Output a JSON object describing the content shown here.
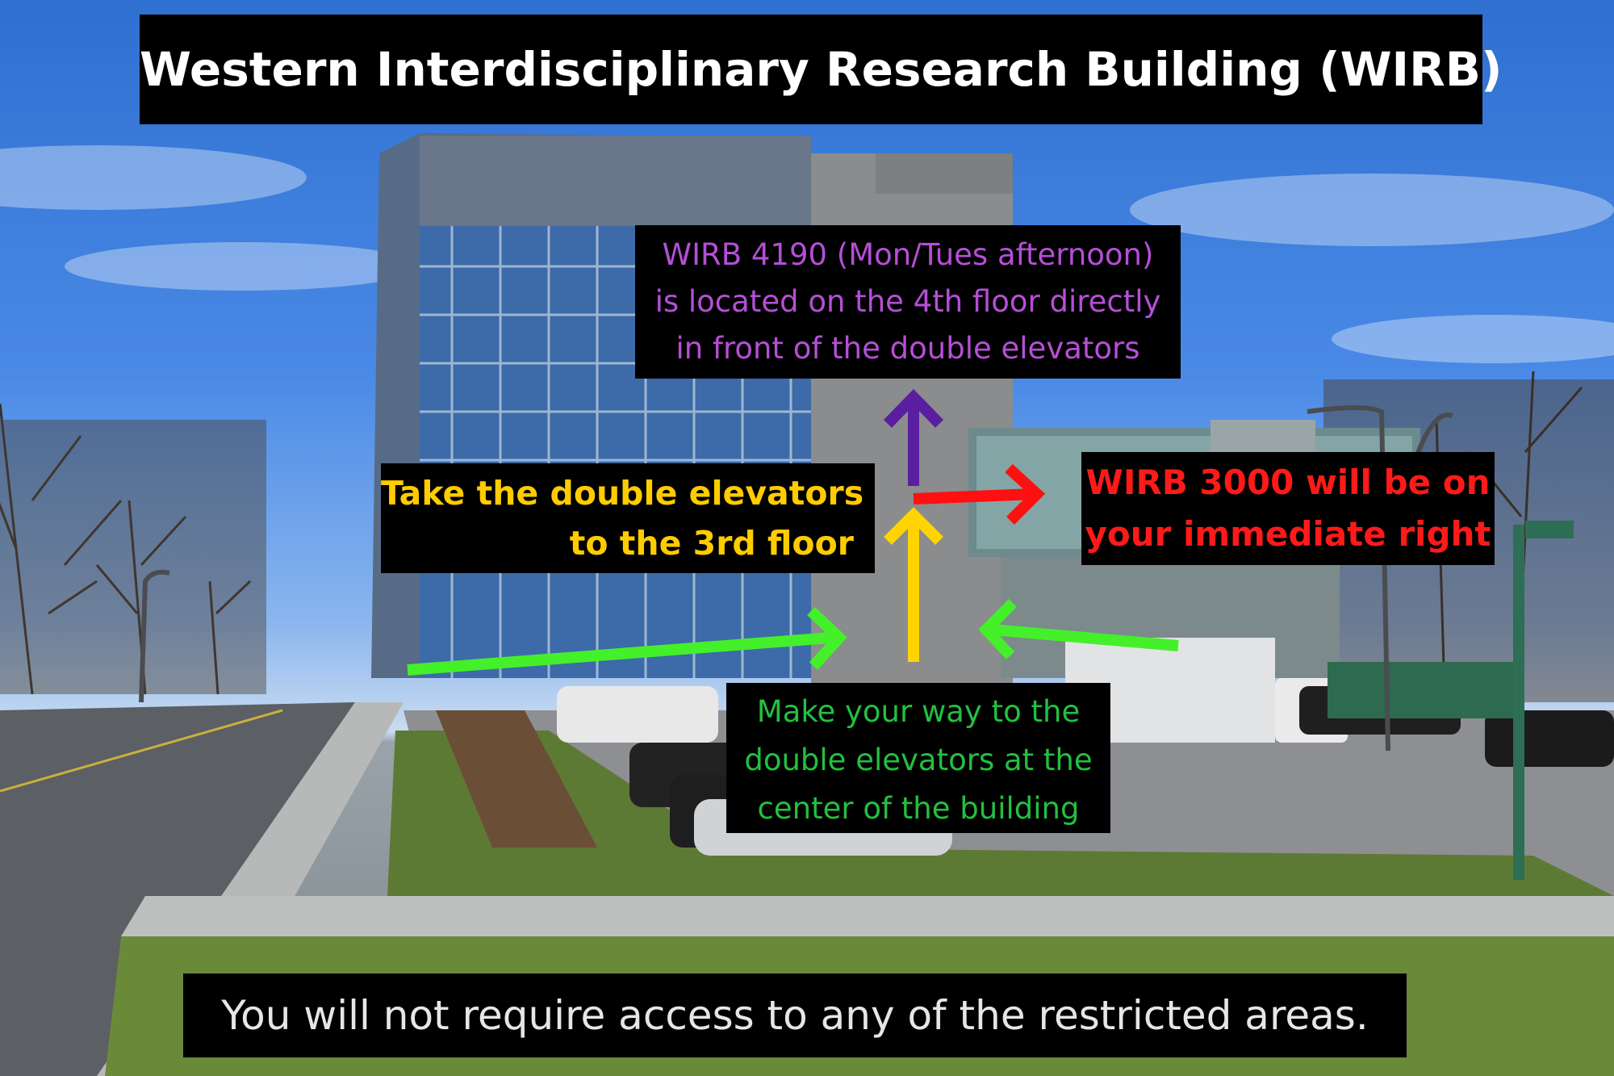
{
  "title": "Western Interdisciplinary Research Building (WIRB)",
  "floor4_note": {
    "lines": [
      "WIRB 4190 (Mon/Tues afternoon)",
      "is located on the 4th floor directly",
      "in front of the double elevators"
    ],
    "color": "#b54fd6"
  },
  "elevator_note": {
    "lines": [
      "Take the double elevators",
      "to the 3rd floor"
    ],
    "color": "#ffcc00"
  },
  "room3000_note": {
    "lines": [
      "WIRB 3000 will be on",
      "your immediate right"
    ],
    "color": "#ff1a1a"
  },
  "entrance_note": {
    "lines": [
      "Make your way to the",
      "double elevators at the",
      "center of the building"
    ],
    "color": "#22c040"
  },
  "footer_note": "You will not require access to any of the restricted areas.",
  "arrow_colors": {
    "green": "#44f02a",
    "yellow": "#ffd400",
    "purple": "#5a1fa0",
    "red": "#ff1010"
  }
}
